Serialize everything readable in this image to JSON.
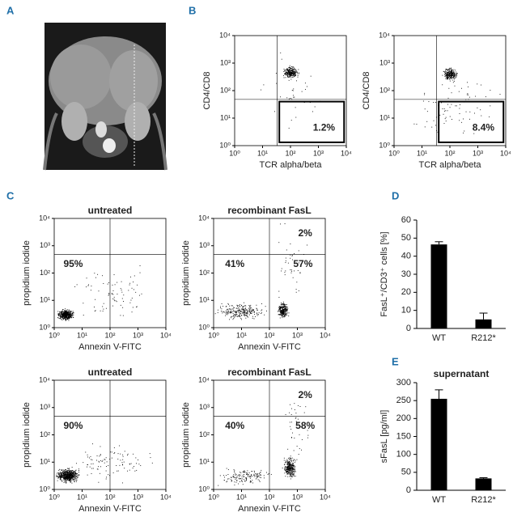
{
  "panel_labels": {
    "a": "A",
    "b": "B",
    "c": "C",
    "d": "D",
    "e": "E"
  },
  "flow_plots": [
    {
      "xlabel": "TCR alpha/beta",
      "ylabel": "CD4/CD8",
      "labels": [
        "1.2%"
      ],
      "xlim": [
        1,
        10000
      ],
      "ylim": [
        1,
        10000
      ],
      "log": true,
      "xticks": [
        {
          "value": 1,
          "label": "10⁰"
        },
        {
          "value": 10,
          "label": "10¹"
        },
        {
          "value": 100,
          "label": "10²"
        },
        {
          "value": 1000,
          "label": "10³"
        },
        {
          "value": 10000,
          "label": "10⁴"
        }
      ],
      "yticks": [
        {
          "value": 1,
          "label": "10⁰"
        },
        {
          "value": 10,
          "label": "10¹"
        },
        {
          "value": 100,
          "label": "10²"
        },
        {
          "value": 1000,
          "label": "10³"
        },
        {
          "value": 10000,
          "label": "10⁴"
        }
      ]
    },
    {
      "xlabel": "TCR alpha/beta",
      "ylabel": "CD4/CD8",
      "labels": [
        "8.4%"
      ],
      "xlim": [
        1,
        10000
      ],
      "ylim": [
        1,
        10000
      ],
      "log": true,
      "xticks": [
        {
          "value": 1,
          "label": "10⁰"
        },
        {
          "value": 10,
          "label": "10¹"
        },
        {
          "value": 100,
          "label": "10²"
        },
        {
          "value": 1000,
          "label": "10³"
        },
        {
          "value": 10000,
          "label": "10⁴"
        }
      ],
      "yticks": [
        {
          "value": 1,
          "label": "10⁰"
        },
        {
          "value": 10,
          "label": "10¹"
        },
        {
          "value": 100,
          "label": "10²"
        },
        {
          "value": 1000,
          "label": "10³"
        },
        {
          "value": 10000,
          "label": "10⁴"
        }
      ]
    },
    {
      "title": "untreated",
      "xlabel": "Annexin V-FITC",
      "ylabel": "propidium iodide",
      "labels": [
        "95%"
      ],
      "xlim": [
        1,
        10000
      ],
      "ylim": [
        1,
        10000
      ],
      "log": true,
      "xticks": [
        {
          "value": 1,
          "label": "10⁰"
        },
        {
          "value": 10,
          "label": "10¹"
        },
        {
          "value": 100,
          "label": "10²"
        },
        {
          "value": 1000,
          "label": "10³"
        },
        {
          "value": 10000,
          "label": "10⁴"
        }
      ],
      "yticks": [
        {
          "value": 1,
          "label": "10⁰"
        },
        {
          "value": 10,
          "label": "10¹"
        },
        {
          "value": 100,
          "label": "10²"
        },
        {
          "value": 1000,
          "label": "10³"
        },
        {
          "value": 10000,
          "label": "10⁴"
        }
      ]
    },
    {
      "title": "recombinant FasL",
      "xlabel": "Annexin V-FITC",
      "ylabel": "propidium iodide",
      "labels": [
        "2%",
        "41%",
        "57%"
      ],
      "xlim": [
        1,
        10000
      ],
      "ylim": [
        1,
        10000
      ],
      "log": true,
      "xticks": [
        {
          "value": 1,
          "label": "10⁰"
        },
        {
          "value": 10,
          "label": "10¹"
        },
        {
          "value": 100,
          "label": "10²"
        },
        {
          "value": 1000,
          "label": "10³"
        },
        {
          "value": 10000,
          "label": "10⁴"
        }
      ],
      "yticks": [
        {
          "value": 1,
          "label": "10⁰"
        },
        {
          "value": 10,
          "label": "10¹"
        },
        {
          "value": 100,
          "label": "10²"
        },
        {
          "value": 1000,
          "label": "10³"
        },
        {
          "value": 10000,
          "label": "10⁴"
        }
      ]
    },
    {
      "title": "untreated",
      "xlabel": "Annexin V-FITC",
      "ylabel": "propidium iodide",
      "labels": [
        "90%"
      ],
      "xlim": [
        1,
        10000
      ],
      "ylim": [
        1,
        10000
      ],
      "log": true,
      "xticks": [
        {
          "value": 1,
          "label": "10⁰"
        },
        {
          "value": 10,
          "label": "10¹"
        },
        {
          "value": 100,
          "label": "10²"
        },
        {
          "value": 1000,
          "label": "10³"
        },
        {
          "value": 10000,
          "label": "10⁴"
        }
      ],
      "yticks": [
        {
          "value": 1,
          "label": "10⁰"
        },
        {
          "value": 10,
          "label": "10¹"
        },
        {
          "value": 100,
          "label": "10²"
        },
        {
          "value": 1000,
          "label": "10³"
        },
        {
          "value": 10000,
          "label": "10⁴"
        }
      ]
    },
    {
      "title": "recombinant FasL",
      "xlabel": "Annexin V-FITC",
      "ylabel": "propidium iodide",
      "labels": [
        "2%",
        "40%",
        "58%"
      ],
      "xlim": [
        1,
        10000
      ],
      "ylim": [
        1,
        10000
      ],
      "log": true,
      "xticks": [
        {
          "value": 1,
          "label": "10⁰"
        },
        {
          "value": 10,
          "label": "10¹"
        },
        {
          "value": 100,
          "label": "10²"
        },
        {
          "value": 1000,
          "label": "10³"
        },
        {
          "value": 10000,
          "label": "10⁴"
        }
      ],
      "yticks": [
        {
          "value": 1,
          "label": "10⁰"
        },
        {
          "value": 10,
          "label": "10¹"
        },
        {
          "value": 100,
          "label": "10²"
        },
        {
          "value": 1000,
          "label": "10³"
        },
        {
          "value": 10000,
          "label": "10⁴"
        }
      ]
    }
  ],
  "chart_data": [
    {
      "type": "bar",
      "ylabel": "FasL⁺/CD3⁺ cells [%]",
      "categories": [
        "WT",
        "R212*"
      ],
      "values": [
        46.5,
        5
      ],
      "errors": [
        1.5,
        3.5
      ],
      "color": "#000000",
      "ylim": [
        0,
        60
      ],
      "yticks": [
        0,
        10,
        20,
        30,
        40,
        50,
        60
      ]
    },
    {
      "type": "bar",
      "title": "supernatant",
      "ylabel": "sFasL [pg/ml]",
      "categories": [
        "WT",
        "R212*"
      ],
      "values": [
        255,
        33
      ],
      "errors": [
        25,
        2
      ],
      "color": "#000000",
      "ylim": [
        0,
        300
      ],
      "yticks": [
        0,
        50,
        100,
        150,
        200,
        250,
        300
      ]
    }
  ]
}
